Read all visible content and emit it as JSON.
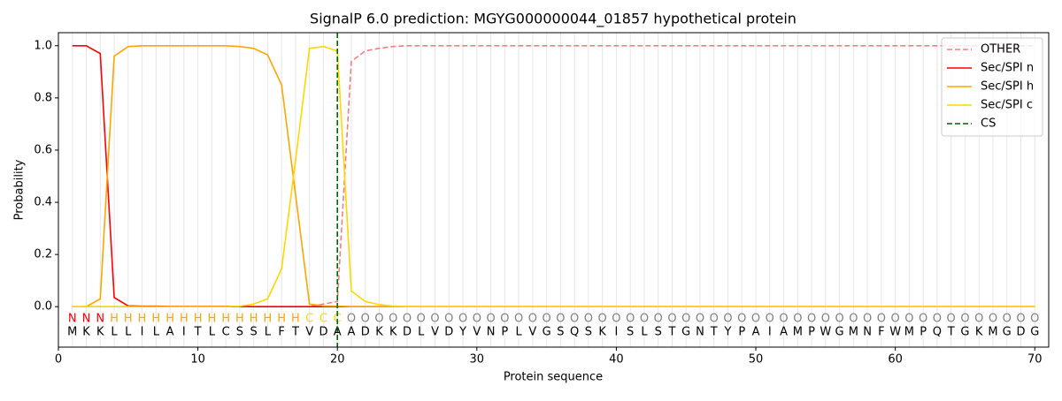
{
  "chart_data": {
    "type": "line",
    "title": "SignalP 6.0 prediction: MGYG000000044_01857 hypothetical protein",
    "xlabel": "Protein sequence",
    "ylabel": "Probability",
    "xlim": [
      0,
      71
    ],
    "ylim": [
      -0.155,
      1.05
    ],
    "xticks": [
      0,
      10,
      20,
      30,
      40,
      50,
      60,
      70
    ],
    "yticks": [
      {
        "value": 0,
        "label": "0.0"
      },
      0.2,
      0.4,
      0.6,
      0.8,
      {
        "value": 1,
        "label": "1.0"
      }
    ],
    "x": [
      1,
      2,
      3,
      4,
      5,
      6,
      7,
      8,
      9,
      10,
      11,
      12,
      13,
      14,
      15,
      16,
      17,
      18,
      19,
      20,
      21,
      22,
      23,
      24,
      25,
      26,
      27,
      28,
      29,
      30,
      31,
      32,
      33,
      34,
      35,
      36,
      37,
      38,
      39,
      40,
      41,
      42,
      43,
      44,
      45,
      46,
      47,
      48,
      49,
      50,
      51,
      52,
      53,
      54,
      55,
      56,
      57,
      58,
      59,
      60,
      61,
      62,
      63,
      64,
      65,
      66,
      67,
      68,
      69,
      70
    ],
    "series": [
      {
        "name": "OTHER",
        "color": "#f08080",
        "dashed": true,
        "values": [
          0,
          0,
          0,
          0,
          0,
          0,
          0,
          0,
          0,
          0,
          0,
          0,
          0,
          0,
          0,
          0,
          0,
          0,
          0.01,
          0.02,
          0.94,
          0.98,
          0.99,
          0.997,
          1,
          1,
          1,
          1,
          1,
          1,
          1,
          1,
          1,
          1,
          1,
          1,
          1,
          1,
          1,
          1,
          1,
          1,
          1,
          1,
          1,
          1,
          1,
          1,
          1,
          1,
          1,
          1,
          1,
          1,
          1,
          1,
          1,
          1,
          1,
          1,
          1,
          1,
          1,
          1,
          1,
          1,
          1,
          1,
          1,
          1
        ]
      },
      {
        "name": "Sec/SPI n",
        "color": "#ff0000",
        "dashed": false,
        "values": [
          1,
          1,
          0.97,
          0.035,
          0.003,
          0.002,
          0.002,
          0.001,
          0.001,
          0.001,
          0.001,
          0.001,
          0.001,
          0,
          0,
          0,
          0,
          0,
          0,
          0,
          0,
          0,
          0,
          0,
          0,
          0,
          0,
          0,
          0,
          0,
          0,
          0,
          0,
          0,
          0,
          0,
          0,
          0,
          0,
          0,
          0,
          0,
          0,
          0,
          0,
          0,
          0,
          0,
          0,
          0,
          0,
          0,
          0,
          0,
          0,
          0,
          0,
          0,
          0,
          0,
          0,
          0,
          0,
          0,
          0,
          0,
          0,
          0,
          0,
          0
        ]
      },
      {
        "name": "Sec/SPI h",
        "color": "#ffa500",
        "dashed": false,
        "values": [
          0,
          0,
          0.03,
          0.96,
          0.997,
          1,
          1,
          1,
          1,
          1,
          1,
          1,
          0.997,
          0.99,
          0.965,
          0.85,
          0.43,
          0.01,
          0.003,
          0.002,
          0,
          0,
          0,
          0,
          0,
          0,
          0,
          0,
          0,
          0,
          0,
          0,
          0,
          0,
          0,
          0,
          0,
          0,
          0,
          0,
          0,
          0,
          0,
          0,
          0,
          0,
          0,
          0,
          0,
          0,
          0,
          0,
          0,
          0,
          0,
          0,
          0,
          0,
          0,
          0,
          0,
          0,
          0,
          0,
          0,
          0,
          0,
          0,
          0,
          0
        ]
      },
      {
        "name": "Sec/SPI c",
        "color": "#ffd700",
        "dashed": false,
        "values": [
          0,
          0,
          0,
          0,
          0,
          0,
          0,
          0,
          0,
          0,
          0,
          0,
          0.002,
          0.01,
          0.03,
          0.145,
          0.56,
          0.99,
          0.997,
          0.98,
          0.06,
          0.02,
          0.008,
          0.002,
          0,
          0,
          0,
          0,
          0,
          0,
          0,
          0,
          0,
          0,
          0,
          0,
          0,
          0,
          0,
          0,
          0,
          0,
          0,
          0,
          0,
          0,
          0,
          0,
          0,
          0,
          0,
          0,
          0,
          0,
          0,
          0,
          0,
          0,
          0,
          0,
          0,
          0,
          0,
          0,
          0,
          0,
          0,
          0,
          0,
          0
        ]
      }
    ],
    "cs": {
      "name": "CS",
      "x": 20,
      "color": "#006400"
    },
    "labels": [
      "N",
      "N",
      "N",
      "H",
      "H",
      "H",
      "H",
      "H",
      "H",
      "H",
      "H",
      "H",
      "H",
      "H",
      "H",
      "H",
      "H",
      "C",
      "C",
      "C",
      "O",
      "O",
      "O",
      "O",
      "O",
      "O",
      "O",
      "O",
      "O",
      "O",
      "O",
      "O",
      "O",
      "O",
      "O",
      "O",
      "O",
      "O",
      "O",
      "O",
      "O",
      "O",
      "O",
      "O",
      "O",
      "O",
      "O",
      "O",
      "O",
      "O",
      "O",
      "O",
      "O",
      "O",
      "O",
      "O",
      "O",
      "O",
      "O",
      "O",
      "O",
      "O",
      "O",
      "O",
      "O",
      "O",
      "O",
      "O",
      "O",
      "O"
    ],
    "label_colors": {
      "N": "#ff0000",
      "H": "#ffa500",
      "C": "#ffd700",
      "O": "#808080"
    },
    "sequence": [
      "M",
      "K",
      "K",
      "L",
      "L",
      "I",
      "L",
      "A",
      "I",
      "T",
      "L",
      "C",
      "S",
      "S",
      "L",
      "F",
      "T",
      "V",
      "D",
      "A",
      "A",
      "D",
      "K",
      "K",
      "D",
      "L",
      "V",
      "D",
      "Y",
      "V",
      "N",
      "P",
      "L",
      "V",
      "G",
      "S",
      "Q",
      "S",
      "K",
      "I",
      "S",
      "L",
      "S",
      "T",
      "G",
      "N",
      "T",
      "Y",
      "P",
      "A",
      "I",
      "A",
      "M",
      "P",
      "W",
      "G",
      "M",
      "N",
      "F",
      "W",
      "M",
      "P",
      "Q",
      "T",
      "G",
      "K",
      "M",
      "G",
      "D",
      "G"
    ],
    "legend": "upper right"
  }
}
